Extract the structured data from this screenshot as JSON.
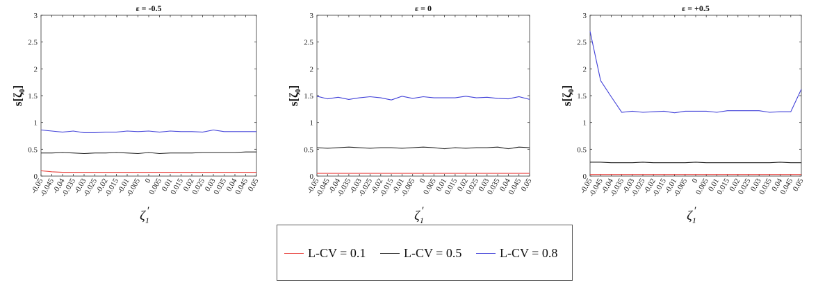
{
  "legend": [
    {
      "label": "L-CV = 0.1",
      "color": "#e8413c"
    },
    {
      "label": "L-CV = 0.5",
      "color": "#222222"
    },
    {
      "label": "L-CV = 0.8",
      "color": "#3f3fd8"
    }
  ],
  "chart_data": [
    {
      "type": "line",
      "title": "ε = -0.5",
      "ylabel_main": "s[ζ",
      "ylabel_sub": "0",
      "ylabel_end": "]",
      "xlabel_main": "ζ",
      "xlabel_sub": "1",
      "xlabel_prime": "′",
      "ylim": [
        0,
        3
      ],
      "yticks": [
        "0",
        "0.5",
        "1",
        "1.5",
        "2",
        "2.5",
        "3"
      ],
      "xlim": [
        -0.05,
        0.05
      ],
      "xticks": [
        "-0.05",
        "-0.045",
        "-0.04",
        "-0.035",
        "-0.03",
        "-0.025",
        "-0.02",
        "-0.015",
        "-0.01",
        "-0.005",
        "0",
        "0.005",
        "0.01",
        "0.015",
        "0.02",
        "0.025",
        "0.03",
        "0.035",
        "0.04",
        "0.045",
        "0.05"
      ],
      "x": [
        -0.05,
        -0.045,
        -0.04,
        -0.035,
        -0.03,
        -0.025,
        -0.02,
        -0.015,
        -0.01,
        -0.005,
        0,
        0.005,
        0.01,
        0.015,
        0.02,
        0.025,
        0.03,
        0.035,
        0.04,
        0.045,
        0.05
      ],
      "series": [
        {
          "name": "L-CV = 0.1",
          "values": [
            0.1,
            0.08,
            0.07,
            0.07,
            0.07,
            0.07,
            0.07,
            0.07,
            0.07,
            0.07,
            0.07,
            0.07,
            0.07,
            0.07,
            0.07,
            0.07,
            0.07,
            0.07,
            0.07,
            0.07,
            0.07
          ]
        },
        {
          "name": "L-CV = 0.5",
          "values": [
            0.43,
            0.43,
            0.44,
            0.43,
            0.42,
            0.43,
            0.43,
            0.44,
            0.43,
            0.42,
            0.44,
            0.42,
            0.43,
            0.43,
            0.43,
            0.44,
            0.44,
            0.44,
            0.44,
            0.45,
            0.45
          ]
        },
        {
          "name": "L-CV = 0.8",
          "values": [
            0.86,
            0.84,
            0.82,
            0.84,
            0.81,
            0.81,
            0.82,
            0.82,
            0.84,
            0.83,
            0.84,
            0.82,
            0.84,
            0.83,
            0.83,
            0.82,
            0.86,
            0.83,
            0.83,
            0.83,
            0.83
          ]
        }
      ]
    },
    {
      "type": "line",
      "title": "ε = 0",
      "ylabel_main": "s[ζ",
      "ylabel_sub": "0",
      "ylabel_end": "]",
      "xlabel_main": "ζ",
      "xlabel_sub": "1",
      "xlabel_prime": "′",
      "ylim": [
        0,
        3
      ],
      "yticks": [
        "0",
        "0.5",
        "1",
        "1.5",
        "2",
        "2.5",
        "3"
      ],
      "xlim": [
        -0.05,
        0.05
      ],
      "xticks": [
        "-0.05",
        "-0.045",
        "-0.04",
        "-0.035",
        "-0.03",
        "-0.025",
        "-0.02",
        "-0.015",
        "-0.01",
        "-0.005",
        "0",
        "0.005",
        "0.01",
        "0.015",
        "0.02",
        "0.025",
        "0.03",
        "0.035",
        "0.04",
        "0.045",
        "0.05"
      ],
      "x": [
        -0.05,
        -0.045,
        -0.04,
        -0.035,
        -0.03,
        -0.025,
        -0.02,
        -0.015,
        -0.01,
        -0.005,
        0,
        0.005,
        0.01,
        0.015,
        0.02,
        0.025,
        0.03,
        0.035,
        0.04,
        0.045,
        0.05
      ],
      "series": [
        {
          "name": "L-CV = 0.1",
          "values": [
            0.05,
            0.05,
            0.05,
            0.05,
            0.05,
            0.05,
            0.05,
            0.05,
            0.05,
            0.05,
            0.05,
            0.05,
            0.05,
            0.05,
            0.05,
            0.05,
            0.05,
            0.05,
            0.05,
            0.05,
            0.05
          ]
        },
        {
          "name": "L-CV = 0.5",
          "values": [
            0.53,
            0.52,
            0.53,
            0.54,
            0.53,
            0.52,
            0.53,
            0.53,
            0.52,
            0.53,
            0.54,
            0.53,
            0.51,
            0.53,
            0.52,
            0.53,
            0.53,
            0.54,
            0.51,
            0.54,
            0.53
          ]
        },
        {
          "name": "L-CV = 0.8",
          "values": [
            1.49,
            1.44,
            1.47,
            1.43,
            1.46,
            1.48,
            1.46,
            1.42,
            1.49,
            1.45,
            1.48,
            1.46,
            1.46,
            1.46,
            1.49,
            1.46,
            1.47,
            1.45,
            1.44,
            1.48,
            1.43
          ]
        }
      ]
    },
    {
      "type": "line",
      "title": "ε = +0.5",
      "ylabel_main": "s[ζ",
      "ylabel_sub": "0",
      "ylabel_end": "]",
      "xlabel_main": "ζ",
      "xlabel_sub": "1",
      "xlabel_prime": "′",
      "ylim": [
        0,
        3
      ],
      "yticks": [
        "0",
        "0.5",
        "1",
        "1.5",
        "2",
        "2.5",
        "3"
      ],
      "xlim": [
        -0.05,
        0.05
      ],
      "xticks": [
        "-0.05",
        "-0.045",
        "-0.04",
        "-0.035",
        "-0.03",
        "-0.025",
        "-0.02",
        "-0.015",
        "-0.01",
        "-0.005",
        "0",
        "0.005",
        "0.01",
        "0.015",
        "0.02",
        "0.025",
        "0.03",
        "0.035",
        "0.04",
        "0.045",
        "0.05"
      ],
      "x": [
        -0.05,
        -0.045,
        -0.04,
        -0.035,
        -0.03,
        -0.025,
        -0.02,
        -0.015,
        -0.01,
        -0.005,
        0,
        0.005,
        0.01,
        0.015,
        0.02,
        0.025,
        0.03,
        0.035,
        0.04,
        0.045,
        0.05
      ],
      "series": [
        {
          "name": "L-CV = 0.1",
          "values": [
            0.03,
            0.03,
            0.03,
            0.03,
            0.03,
            0.03,
            0.03,
            0.03,
            0.03,
            0.03,
            0.03,
            0.03,
            0.03,
            0.03,
            0.03,
            0.03,
            0.03,
            0.03,
            0.03,
            0.03,
            0.03
          ]
        },
        {
          "name": "L-CV = 0.5",
          "values": [
            0.26,
            0.26,
            0.25,
            0.25,
            0.25,
            0.26,
            0.25,
            0.25,
            0.25,
            0.25,
            0.26,
            0.25,
            0.25,
            0.25,
            0.25,
            0.25,
            0.25,
            0.25,
            0.26,
            0.25,
            0.25
          ]
        },
        {
          "name": "L-CV = 0.8",
          "values": [
            2.7,
            1.78,
            1.48,
            1.19,
            1.21,
            1.19,
            1.2,
            1.21,
            1.18,
            1.21,
            1.21,
            1.21,
            1.19,
            1.22,
            1.22,
            1.22,
            1.22,
            1.19,
            1.2,
            1.2,
            1.62
          ]
        }
      ]
    }
  ]
}
